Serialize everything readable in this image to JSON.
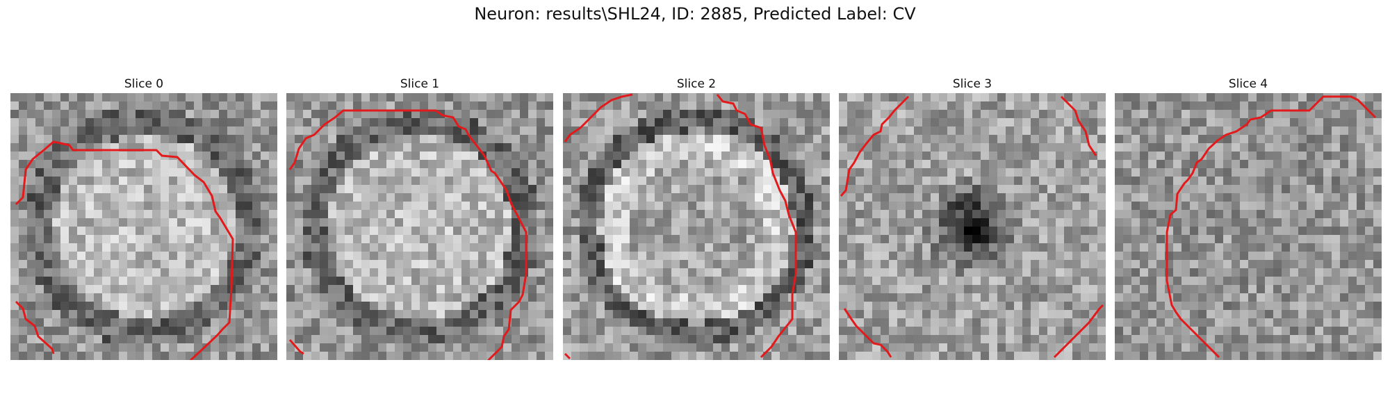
{
  "figure": {
    "title": "Neuron: results\\SHL24, ID: 2885, Predicted Label: CV",
    "contour_color": "#e31a1c"
  },
  "panels": [
    {
      "title": "Slice 0",
      "seed": 11,
      "pattern": "bright-ring"
    },
    {
      "title": "Slice 1",
      "seed": 23,
      "pattern": "bright-ring"
    },
    {
      "title": "Slice 2",
      "seed": 37,
      "pattern": "bright-ring-strong"
    },
    {
      "title": "Slice 3",
      "seed": 41,
      "pattern": "dark-center"
    },
    {
      "title": "Slice 4",
      "seed": 53,
      "pattern": "noise"
    }
  ]
}
